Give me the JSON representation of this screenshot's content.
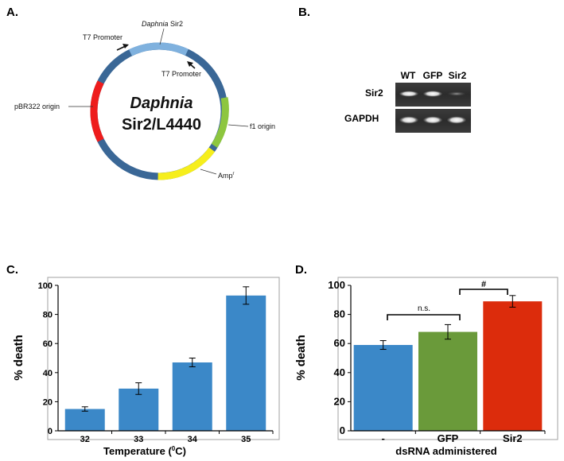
{
  "panels": {
    "a": {
      "label": "A.",
      "plasmid_name_line1": "Daphnia",
      "plasmid_name_line2": "Sir2/L4440",
      "features": {
        "daphnia_sir2_italic": "Daphnia",
        "daphnia_sir2_rest": " Sir2",
        "t7_promoter_top": "T7 Promoter",
        "t7_promoter_right": "T7 Promoter",
        "pbr322_origin": "pBR322 origin",
        "f1_origin": "f1 origin",
        "amp": "Amp",
        "amp_superscript": "r"
      },
      "colors": {
        "backbone": "#3a6796",
        "sir2": "#7fb1de",
        "pbr322": "#ee1c1c",
        "f1": "#8dc63f",
        "amp": "#f6ee1c"
      }
    },
    "b": {
      "label": "B.",
      "lane_labels": [
        "WT",
        "GFP",
        "Sir2"
      ],
      "row_labels": [
        "Sir2",
        "GAPDH"
      ]
    },
    "c": {
      "label": "C."
    },
    "d": {
      "label": "D.",
      "ns_label": "n.s.",
      "sig_label": "#"
    }
  },
  "chart_data": [
    {
      "type": "bar",
      "panel": "C",
      "categories": [
        "32",
        "33",
        "34",
        "35"
      ],
      "values": [
        15,
        29,
        47,
        93
      ],
      "errors": [
        1.5,
        4,
        3,
        6
      ],
      "colors": [
        "#3b88c8",
        "#3b88c8",
        "#3b88c8",
        "#3b88c8"
      ],
      "xlabel": "Temperature (",
      "xlabel_sup": "0",
      "xlabel_end": "C)",
      "ylabel": "% death",
      "ylim": [
        0,
        100
      ],
      "yticks": [
        0,
        20,
        40,
        60,
        80,
        100
      ]
    },
    {
      "type": "bar",
      "panel": "D",
      "categories": [
        "-",
        "GFP",
        "Sir2"
      ],
      "values": [
        59,
        68,
        89
      ],
      "errors": [
        3,
        5,
        4
      ],
      "colors": [
        "#3b88c8",
        "#6a9a3a",
        "#dc2c0c"
      ],
      "xlabel": "dsRNA administered",
      "ylabel": "% death",
      "ylim": [
        0,
        100
      ],
      "yticks": [
        0,
        20,
        40,
        60,
        80,
        100
      ]
    }
  ]
}
